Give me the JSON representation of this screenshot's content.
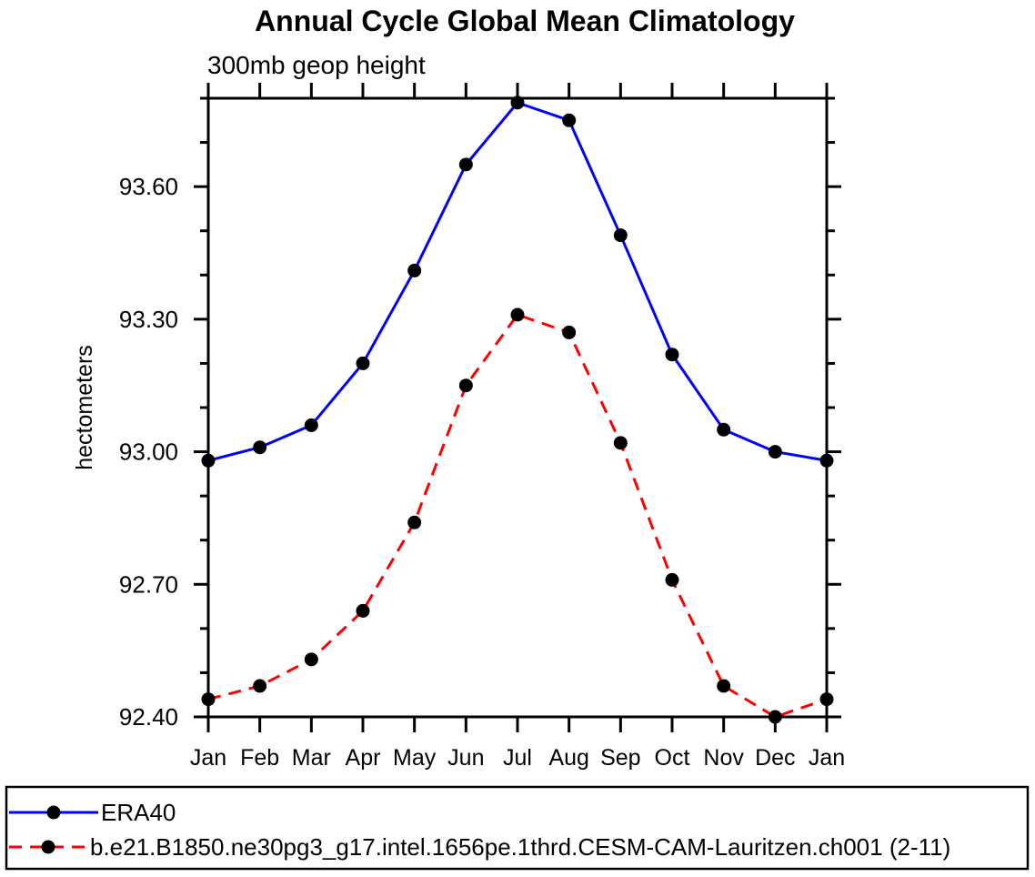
{
  "page": {
    "background_color": "#ffffff",
    "text_color": "#000000"
  },
  "chart_data": {
    "type": "line",
    "title": "Annual Cycle Global Mean Climatology",
    "subtitle": "300mb geop height",
    "ylabel": "hectometers",
    "xlabel": "",
    "categories": [
      "Jan",
      "Feb",
      "Mar",
      "Apr",
      "May",
      "Jun",
      "Jul",
      "Aug",
      "Sep",
      "Oct",
      "Nov",
      "Dec",
      "Jan"
    ],
    "ylim": [
      92.4,
      93.8
    ],
    "ytick_labels": [
      "92.40",
      "92.70",
      "93.00",
      "93.30",
      "93.60"
    ],
    "ytick_values": [
      92.4,
      92.7,
      93.0,
      93.3,
      93.6
    ],
    "yminor_values": [
      92.5,
      92.6,
      92.8,
      92.9,
      93.1,
      93.2,
      93.4,
      93.5,
      93.7,
      93.8
    ],
    "grid": false,
    "legend_position": "bottom",
    "series": [
      {
        "name": "ERA40",
        "color": "#0000ff",
        "line_style": "solid",
        "marker": "black-dot",
        "values": [
          92.98,
          93.01,
          93.06,
          93.2,
          93.41,
          93.65,
          93.79,
          93.75,
          93.49,
          93.22,
          93.05,
          93.0,
          92.98
        ]
      },
      {
        "name": "b.e21.B1850.ne30pg3_g17.intel.1656pe.1thrd.CESM-CAM-Lauritzen.ch001 (2-11)",
        "color": "#ff0000",
        "line_style": "dashed",
        "marker": "black-dot",
        "values": [
          92.44,
          92.47,
          92.53,
          92.64,
          92.84,
          93.15,
          93.31,
          93.27,
          93.02,
          92.71,
          92.47,
          92.4,
          92.44
        ]
      }
    ]
  }
}
